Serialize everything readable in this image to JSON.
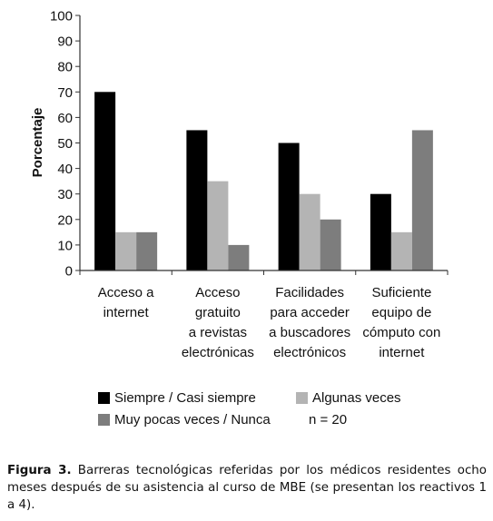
{
  "chart_data": {
    "type": "bar",
    "ylabel": "Porcentaje",
    "ylim": [
      0,
      100
    ],
    "yticks": [
      "100",
      "90",
      "80",
      "70",
      "60",
      "50",
      "40",
      "30",
      "20",
      "10",
      "0"
    ],
    "categories": [
      [
        "Acceso a",
        "internet"
      ],
      [
        "Acceso",
        "gratuito",
        "a revistas",
        "electrónicas"
      ],
      [
        "Facilidades",
        "para acceder",
        "a buscadores",
        "electrónicos"
      ],
      [
        "Suficiente",
        "equipo de",
        "cómputo con",
        "internet"
      ]
    ],
    "series": [
      {
        "name": "Siempre / Casi siempre",
        "color": "#000000",
        "values": [
          70,
          55,
          50,
          30
        ]
      },
      {
        "name": "Algunas veces",
        "color": "#b4b4b4",
        "values": [
          15,
          35,
          30,
          15
        ]
      },
      {
        "name": "Muy pocas veces / Nunca",
        "color": "#7d7d7d",
        "values": [
          15,
          10,
          20,
          55
        ]
      }
    ],
    "grid": false,
    "legend": "bottom",
    "note": "n = 20"
  },
  "caption": {
    "label": "Figura 3.",
    "text": "Barreras tecnológicas referidas por los médicos residentes ocho meses después de su asistencia al curso de MBE (se presentan los reactivos 1 a 4)."
  }
}
